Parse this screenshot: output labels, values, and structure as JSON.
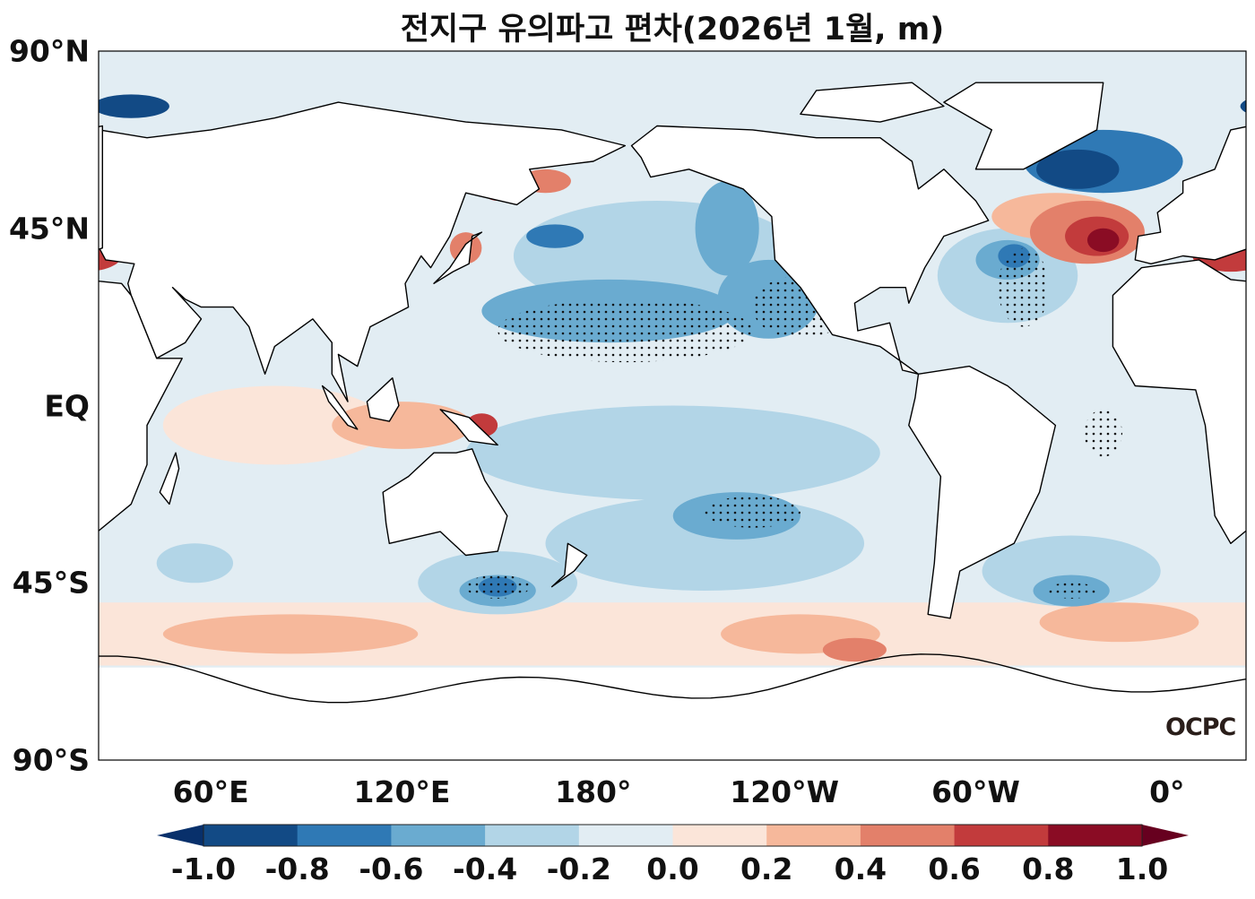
{
  "title": "전지구 유의파고 편차(2026년 1월, m)",
  "logo_text": "OCPC",
  "lat_labels": [
    "90°N",
    "45°N",
    "EQ",
    "45°S",
    "90°S"
  ],
  "lat_values": [
    90,
    45,
    0,
    -45,
    -90
  ],
  "lon_labels": [
    "60°E",
    "120°E",
    "180°",
    "120°W",
    "60°W",
    "0°"
  ],
  "lon_values": [
    60,
    120,
    180,
    240,
    300,
    360
  ],
  "colorbar": {
    "ticks": [
      "-1.0",
      "-0.8",
      "-0.6",
      "-0.4",
      "-0.2",
      "0.0",
      "0.2",
      "0.4",
      "0.6",
      "0.8",
      "1.0"
    ],
    "colors": [
      "#124a85",
      "#2f79b5",
      "#6aabd0",
      "#b2d5e7",
      "#e2edf3",
      "#fbe5d9",
      "#f6b89b",
      "#e3806a",
      "#c23b3c",
      "#8a0c24"
    ],
    "extend_low": "#08306b",
    "extend_high": "#67001f"
  },
  "chart_data": {
    "type": "heatmap",
    "title": "전지구 유의파고 편차(2026년 1월, m)",
    "projection": "plate-carree",
    "central_longitude": 205,
    "range": [
      -1.0,
      1.0
    ],
    "stippling": "significant regions",
    "anomaly_regions": [
      {
        "lon": 200,
        "lat": 38,
        "rlon": 45,
        "rlat": 14,
        "value": -0.3
      },
      {
        "lon": 205,
        "lat": -12,
        "rlon": 65,
        "rlat": 12,
        "value": -0.3
      },
      {
        "lon": 215,
        "lat": -35,
        "rlon": 50,
        "rlat": 12,
        "value": -0.3
      },
      {
        "lon": 310,
        "lat": 33,
        "rlon": 22,
        "rlat": 12,
        "value": -0.3
      },
      {
        "lon": 330,
        "lat": -42,
        "rlon": 28,
        "rlat": 9,
        "value": -0.3
      },
      {
        "lon": 150,
        "lat": -45,
        "rlon": 25,
        "rlat": 8,
        "value": -0.3
      },
      {
        "lon": 55,
        "lat": -40,
        "rlon": 12,
        "rlat": 5,
        "value": -0.3
      },
      {
        "lon": 80,
        "lat": -5,
        "rlon": 35,
        "rlat": 10,
        "value": 0.1
      },
      {
        "lon": 120,
        "lat": -5,
        "rlon": 22,
        "rlat": 6,
        "value": 0.3
      },
      {
        "lon": 145,
        "lat": -5,
        "rlon": 5,
        "rlat": 3,
        "value": 0.7
      },
      {
        "lon": 85,
        "lat": -58,
        "rlon": 40,
        "rlat": 5,
        "value": 0.3
      },
      {
        "lon": 245,
        "lat": -58,
        "rlon": 25,
        "rlat": 5,
        "value": 0.3
      },
      {
        "lon": 262,
        "lat": -62,
        "rlon": 10,
        "rlat": 3,
        "value": 0.5
      },
      {
        "lon": 345,
        "lat": -55,
        "rlon": 25,
        "rlat": 5,
        "value": 0.3
      },
      {
        "lon": 185,
        "lat": 24,
        "rlon": 40,
        "rlat": 8,
        "value": -0.5
      },
      {
        "lon": 235,
        "lat": 27,
        "rlon": 16,
        "rlat": 10,
        "value": -0.5
      },
      {
        "lon": 222,
        "lat": 45,
        "rlon": 10,
        "rlat": 12,
        "value": -0.5
      },
      {
        "lon": 168,
        "lat": 43,
        "rlon": 9,
        "rlat": 3,
        "value": -0.7
      },
      {
        "lon": 225,
        "lat": -28,
        "rlon": 20,
        "rlat": 6,
        "value": -0.5
      },
      {
        "lon": 150,
        "lat": -47,
        "rlon": 12,
        "rlat": 4,
        "value": -0.5
      },
      {
        "lon": 150,
        "lat": -46,
        "rlon": 6,
        "rlat": 2.5,
        "value": -0.7
      },
      {
        "lon": 330,
        "lat": -47,
        "rlon": 12,
        "rlat": 4,
        "value": -0.5
      },
      {
        "lon": 310,
        "lat": 37,
        "rlon": 10,
        "rlat": 5,
        "value": -0.5
      },
      {
        "lon": 312,
        "lat": 38,
        "rlon": 5,
        "rlat": 3,
        "value": -0.7
      },
      {
        "lon": 325,
        "lat": 48,
        "rlon": 20,
        "rlat": 6,
        "value": 0.3
      },
      {
        "lon": 335,
        "lat": 44,
        "rlon": 18,
        "rlat": 8,
        "value": 0.5
      },
      {
        "lon": 338,
        "lat": 43,
        "rlon": 10,
        "rlat": 5,
        "value": 0.7
      },
      {
        "lon": 340,
        "lat": 42,
        "rlon": 5,
        "rlat": 3,
        "value": 0.9
      },
      {
        "lon": 340,
        "lat": 62,
        "rlon": 25,
        "rlat": 8,
        "value": -0.7
      },
      {
        "lon": 332,
        "lat": 60,
        "rlon": 13,
        "rlat": 5,
        "value": -0.9
      },
      {
        "lon": 35,
        "lat": 76,
        "rlon": 12,
        "rlat": 3,
        "value": -0.9
      },
      {
        "lon": 20,
        "lat": 38,
        "rlon": 12,
        "rlat": 4,
        "value": 0.7
      },
      {
        "lon": 150,
        "lat": 55,
        "rlon": 5,
        "rlat": 3,
        "value": 0.7
      },
      {
        "lon": 140,
        "lat": 40,
        "rlon": 5,
        "rlat": 4,
        "value": 0.5
      },
      {
        "lon": 165,
        "lat": 57,
        "rlon": 8,
        "rlat": 3,
        "value": 0.5
      }
    ],
    "stippled_regions": [
      {
        "lon": 190,
        "lat": 19,
        "rlon": 40,
        "rlat": 8
      },
      {
        "lon": 245,
        "lat": 25,
        "rlon": 15,
        "rlat": 8
      },
      {
        "lon": 230,
        "lat": -27,
        "rlon": 15,
        "rlat": 4
      },
      {
        "lon": 150,
        "lat": -46,
        "rlon": 10,
        "rlat": 3
      },
      {
        "lon": 330,
        "lat": -47,
        "rlon": 8,
        "rlat": 2
      },
      {
        "lon": 340,
        "lat": -7,
        "rlon": 6,
        "rlat": 6
      },
      {
        "lon": 315,
        "lat": 30,
        "rlon": 8,
        "rlat": 10
      }
    ]
  }
}
